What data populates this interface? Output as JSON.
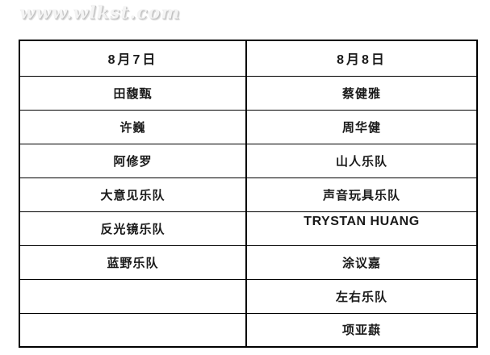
{
  "watermark": "www.wlkst.com",
  "table": {
    "headers": [
      "8月7日",
      "8月8日"
    ],
    "rows": [
      [
        "田馥甄",
        "蔡健雅"
      ],
      [
        "许巍",
        "周华健"
      ],
      [
        "阿修罗",
        "山人乐队"
      ],
      [
        "大意见乐队",
        "声音玩具乐队"
      ],
      [
        "反光镜乐队",
        "TRYSTAN HUANG"
      ],
      [
        "蓝野乐队",
        "涂议嘉"
      ],
      [
        "",
        "左右乐队"
      ],
      [
        "",
        "项亚蕻"
      ]
    ]
  },
  "colors": {
    "background": "#ffffff",
    "border": "#000000",
    "text": "#1a1a1a",
    "watermark": "#f4f4f4"
  }
}
